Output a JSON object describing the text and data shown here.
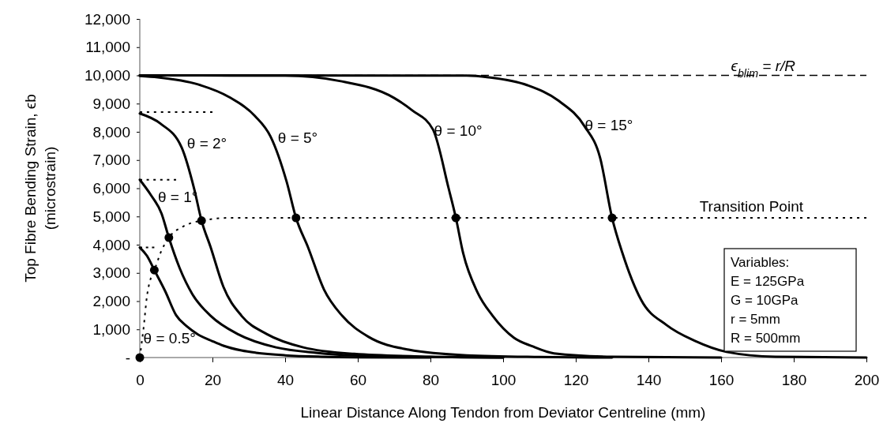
{
  "chart_data": {
    "type": "line",
    "xlabel": "Linear Distance Along Tendon from Deviator Centreline (mm)",
    "ylabel": "Top Fibre Bending Strain, ϵb\n(microstrain)",
    "xlim": [
      0,
      200
    ],
    "xticks": [
      0,
      20,
      40,
      60,
      80,
      100,
      120,
      140,
      160,
      180,
      200
    ],
    "ylim": [
      0,
      12000
    ],
    "yticks": [
      {
        "value": 0,
        "label": "-"
      },
      {
        "value": 1000,
        "label": "1,000"
      },
      {
        "value": 2000,
        "label": "2,000"
      },
      {
        "value": 3000,
        "label": "3,000"
      },
      {
        "value": 4000,
        "label": "4,000"
      },
      {
        "value": 5000,
        "label": "5,000"
      },
      {
        "value": 6000,
        "label": "6,000"
      },
      {
        "value": 7000,
        "label": "7,000"
      },
      {
        "value": 8000,
        "label": "8,000"
      },
      {
        "value": 9000,
        "label": "9,000"
      },
      {
        "value": 10000,
        "label": "10,000"
      },
      {
        "value": 11000,
        "label": "11,000"
      },
      {
        "value": 12000,
        "label": "12,000"
      }
    ],
    "grid": false,
    "marker": "none",
    "series": [
      {
        "color": "#000000",
        "line_style": "solid",
        "x": [
          0,
          2,
          4,
          7,
          10,
          13,
          16,
          20,
          23,
          28,
          32,
          40,
          50,
          60,
          80
        ],
        "values": [
          3900,
          3600,
          3100,
          2350,
          1500,
          1100,
          820,
          580,
          420,
          250,
          170,
          80,
          30,
          10,
          0
        ]
      },
      {
        "color": "#000000",
        "line_style": "solid",
        "x": [
          0,
          3,
          6,
          8,
          11,
          14.5,
          19.5,
          27,
          37.5,
          48.5,
          60,
          80,
          100
        ],
        "values": [
          6300,
          5770,
          5100,
          4250,
          3160,
          2240,
          1480,
          830,
          360,
          170,
          70,
          20,
          0
        ]
      },
      {
        "color": "#000000",
        "line_style": "solid",
        "x": [
          0,
          5.7,
          11.5,
          15,
          17,
          19.5,
          23,
          28,
          35,
          45,
          59,
          80,
          100
        ],
        "values": [
          8650,
          8290,
          7450,
          5960,
          4850,
          3910,
          2510,
          1480,
          830,
          360,
          130,
          30,
          0
        ]
      },
      {
        "color": "#000000",
        "line_style": "solid",
        "x": [
          0,
          5,
          16,
          24.6,
          31.7,
          36,
          40.4,
          43,
          46.3,
          50.7,
          55.7,
          63,
          74,
          90,
          110,
          130
        ],
        "values": [
          9980,
          9930,
          9680,
          9230,
          8560,
          7830,
          6240,
          4950,
          3910,
          2410,
          1480,
          730,
          280,
          80,
          20,
          0
        ]
      },
      {
        "color": "#000000",
        "line_style": "solid",
        "x": [
          0,
          40,
          55,
          70,
          75,
          80.7,
          85,
          87,
          89,
          93,
          97,
          103,
          108,
          114,
          130,
          160
        ],
        "values": [
          10000,
          9990,
          9800,
          9200,
          8760,
          8080,
          6000,
          4950,
          3700,
          2300,
          1500,
          700,
          400,
          150,
          30,
          0
        ]
      },
      {
        "color": "#000000",
        "line_style": "solid",
        "x": [
          0,
          90,
          96,
          106.7,
          115.4,
          122.4,
          126.7,
          130,
          132.8,
          138,
          145,
          152.8,
          161.5,
          175,
          200
        ],
        "values": [
          10000,
          9990,
          9930,
          9650,
          9090,
          8200,
          7080,
          4950,
          3720,
          2040,
          1150,
          590,
          200,
          30,
          0
        ]
      },
      {
        "color": "#000000",
        "line_style": "dotted",
        "x": [
          0,
          20
        ],
        "values": [
          8700,
          8700
        ]
      },
      {
        "color": "#000000",
        "line_style": "dotted",
        "x": [
          0,
          10
        ],
        "values": [
          6300,
          6300
        ]
      },
      {
        "color": "#000000",
        "line_style": "dotted",
        "x": [
          0,
          4
        ],
        "values": [
          3900,
          3900
        ]
      },
      {
        "name": "Transition Point",
        "color": "#000000",
        "line_style": "dotted",
        "x": [
          0,
          0.5,
          1,
          2,
          3,
          4,
          6,
          8,
          12,
          17,
          25,
          200
        ],
        "values": [
          0,
          500,
          1000,
          2200,
          2800,
          3100,
          3800,
          4250,
          4650,
          4850,
          4950,
          4950
        ]
      },
      {
        "type": "scatter",
        "marker": "circle",
        "color": "#000000",
        "x": [
          0,
          4,
          8,
          17,
          43,
          87,
          130
        ],
        "values": [
          0,
          3100,
          4250,
          4850,
          4950,
          4950,
          4950
        ]
      }
    ],
    "ref_lines": [
      {
        "axis": "y",
        "value": 10000,
        "label": "ϵ$_{blim}$ = r/R",
        "line_style": "dashed",
        "color": "#000000"
      }
    ],
    "annotations": [
      {
        "text": "θ = 0.5°",
        "x": 1,
        "y": 500
      },
      {
        "text": "θ = 1°",
        "x": 5,
        "y": 5500
      },
      {
        "text": "θ = 2°",
        "x": 13,
        "y": 7400
      },
      {
        "text": "θ = 5°",
        "x": 38,
        "y": 7600
      },
      {
        "text": "θ = 10°",
        "x": 81,
        "y": 7850
      },
      {
        "text": "θ = 15°",
        "x": 122.5,
        "y": 8050
      },
      "Variables:",
      "E = 125GPa",
      "G = 10GPa",
      "r = 5mm",
      "R = 500mm"
    ]
  }
}
